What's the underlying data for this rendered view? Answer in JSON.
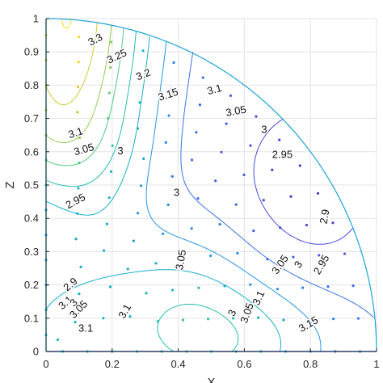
{
  "chart_data": {
    "type": "contour",
    "xlabel": "X",
    "ylabel": "Z",
    "xlim": [
      0,
      1
    ],
    "ylim": [
      0,
      1
    ],
    "xticks": [
      "0",
      "0.2",
      "0.4",
      "0.6",
      "0.8",
      "1"
    ],
    "yticks": [
      "0",
      "0.1",
      "0.2",
      "0.3",
      "0.4",
      "0.5",
      "0.6",
      "0.7",
      "0.8",
      "0.9",
      "1"
    ],
    "grid": true,
    "domain": "quarter disk x^2 + z^2 <= 1",
    "contour_labels": [
      {
        "text": "3.3",
        "x": 0.15,
        "z": 0.935,
        "angle": -28
      },
      {
        "text": "3.25",
        "x": 0.215,
        "z": 0.885,
        "angle": -25
      },
      {
        "text": "3.2",
        "x": 0.295,
        "z": 0.83,
        "angle": -22
      },
      {
        "text": "3.15",
        "x": 0.37,
        "z": 0.77,
        "angle": -18
      },
      {
        "text": "3.1",
        "x": 0.51,
        "z": 0.785,
        "angle": -15
      },
      {
        "text": "3.05",
        "x": 0.575,
        "z": 0.72,
        "angle": -10
      },
      {
        "text": "3",
        "x": 0.66,
        "z": 0.665,
        "angle": 0
      },
      {
        "text": "2.95",
        "x": 0.715,
        "z": 0.59,
        "angle": 0
      },
      {
        "text": "3.1",
        "x": 0.09,
        "z": 0.655,
        "angle": -18
      },
      {
        "text": "3.05",
        "x": 0.115,
        "z": 0.605,
        "angle": -15
      },
      {
        "text": "3",
        "x": 0.225,
        "z": 0.6,
        "angle": 0
      },
      {
        "text": "2.95",
        "x": 0.09,
        "z": 0.45,
        "angle": -28
      },
      {
        "text": "3",
        "x": 0.395,
        "z": 0.475,
        "angle": 0
      },
      {
        "text": "2.9",
        "x": 0.845,
        "z": 0.405,
        "angle": -80
      },
      {
        "text": "3.05",
        "x": 0.41,
        "z": 0.275,
        "angle": -80
      },
      {
        "text": "3.05",
        "x": 0.71,
        "z": 0.26,
        "angle": -55
      },
      {
        "text": "3",
        "x": 0.765,
        "z": 0.26,
        "angle": -55
      },
      {
        "text": "2.95",
        "x": 0.835,
        "z": 0.26,
        "angle": -60
      },
      {
        "text": "2.9",
        "x": 0.075,
        "z": 0.2,
        "angle": -40
      },
      {
        "text": "3.1",
        "x": 0.06,
        "z": 0.145,
        "angle": -40
      },
      {
        "text": "3",
        "x": 0.085,
        "z": 0.145,
        "angle": -45
      },
      {
        "text": "3.05",
        "x": 0.1,
        "z": 0.125,
        "angle": -45
      },
      {
        "text": "3.1",
        "x": 0.24,
        "z": 0.12,
        "angle": -60
      },
      {
        "text": "3.1",
        "x": 0.12,
        "z": 0.068,
        "angle": 0
      },
      {
        "text": "3.1",
        "x": 0.645,
        "z": 0.16,
        "angle": -65
      },
      {
        "text": "3.05",
        "x": 0.61,
        "z": 0.115,
        "angle": -70
      },
      {
        "text": "3",
        "x": 0.565,
        "z": 0.115,
        "angle": -65
      },
      {
        "text": "3.15",
        "x": 0.795,
        "z": 0.08,
        "angle": -30
      }
    ],
    "levels": [
      2.9,
      2.95,
      3.0,
      3.05,
      3.1,
      3.15,
      3.2,
      3.25,
      3.3,
      3.35
    ]
  }
}
